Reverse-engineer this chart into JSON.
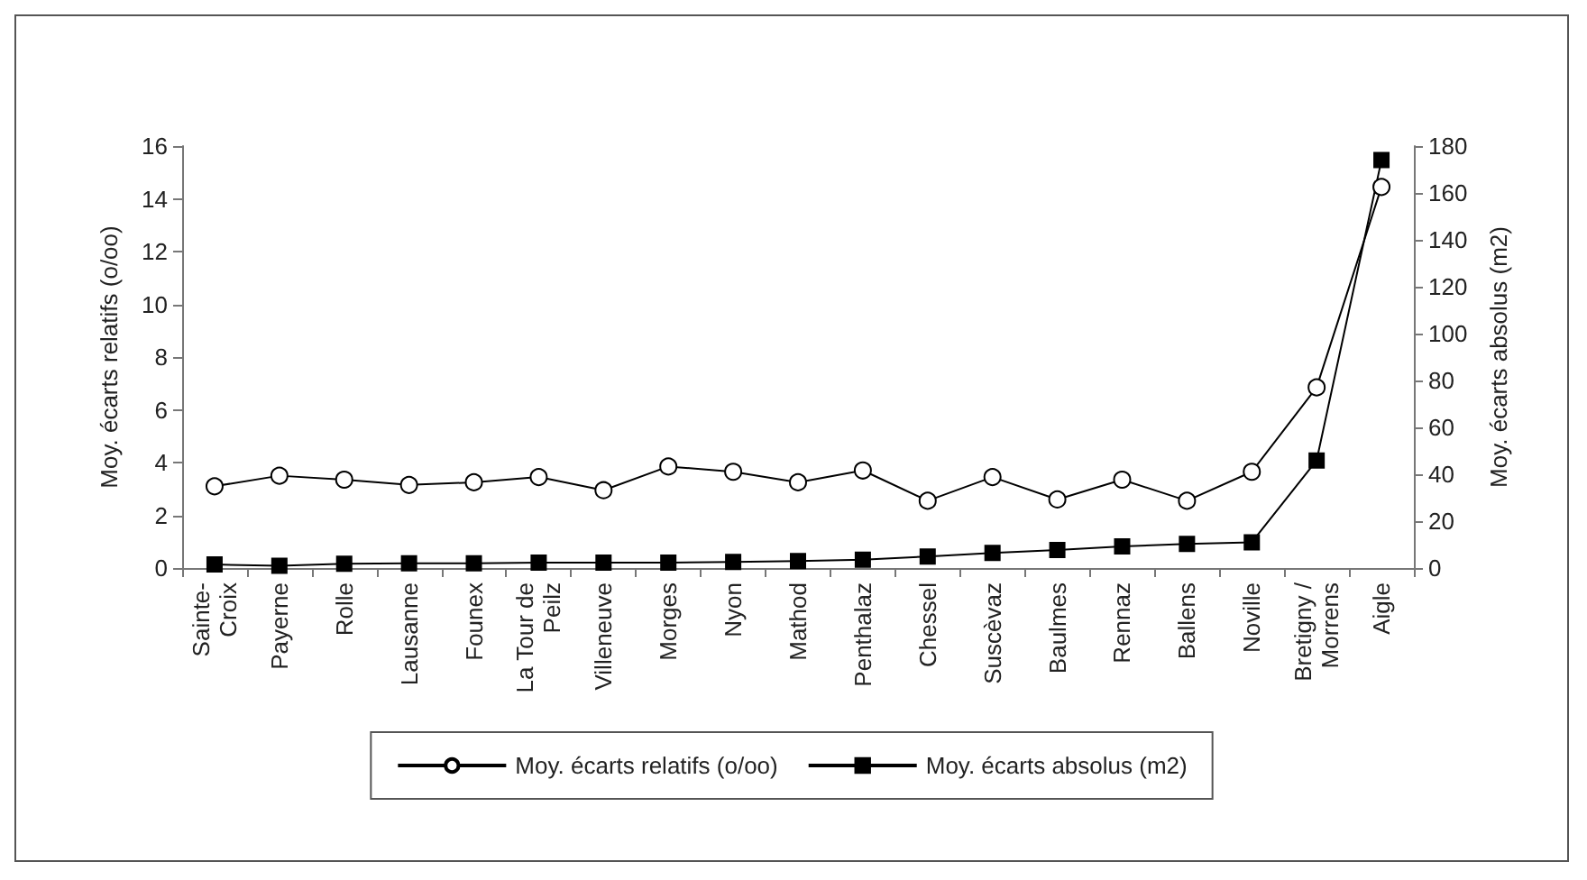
{
  "chart_data": {
    "type": "line",
    "ylabel": "Moy. écarts relatifs (o/oo)",
    "y2label": "Moy. écarts absolus (m2)",
    "categories": [
      "Sainte-Croix",
      "Payerne",
      "Rolle",
      "Lausanne",
      "Founex",
      "La Tour de Peilz",
      "Villeneuve",
      "Morges",
      "Nyon",
      "Mathod",
      "Penthalaz",
      "Chessel",
      "Suscèvaz",
      "Baulmes",
      "Rennaz",
      "Ballens",
      "Noville",
      "Bretigny / Morrens",
      "Aigle"
    ],
    "series": [
      {
        "name": "Moy. écarts relatifs (o/oo)",
        "color": "#000000",
        "marker": "circle",
        "values": [
          3.1,
          3.5,
          3.35,
          3.15,
          3.25,
          3.45,
          2.95,
          3.85,
          3.65,
          3.25,
          3.7,
          2.55,
          3.45,
          2.6,
          3.35,
          2.55,
          3.65,
          6.85,
          14.45
        ]
      },
      {
        "name": "Moy. écarts absolus (m2)",
        "color": "#000000",
        "marker": "square",
        "axis": "y2",
        "values": [
          1.5,
          1,
          1.8,
          2,
          2,
          2.3,
          2.3,
          2.3,
          2.6,
          3,
          3.6,
          4.9,
          6.4,
          7.7,
          9.2,
          10.3,
          11,
          45.9,
          174
        ]
      }
    ],
    "ylim": [
      0,
      16
    ],
    "yticks": [
      0,
      2,
      4,
      6,
      8,
      10,
      12,
      14,
      16
    ],
    "y2lim": [
      0,
      180
    ],
    "y2ticks": [
      0,
      20,
      40,
      60,
      80,
      100,
      120,
      140,
      160,
      180
    ],
    "grid": false,
    "legend": "bottom",
    "line_style": "solid"
  }
}
